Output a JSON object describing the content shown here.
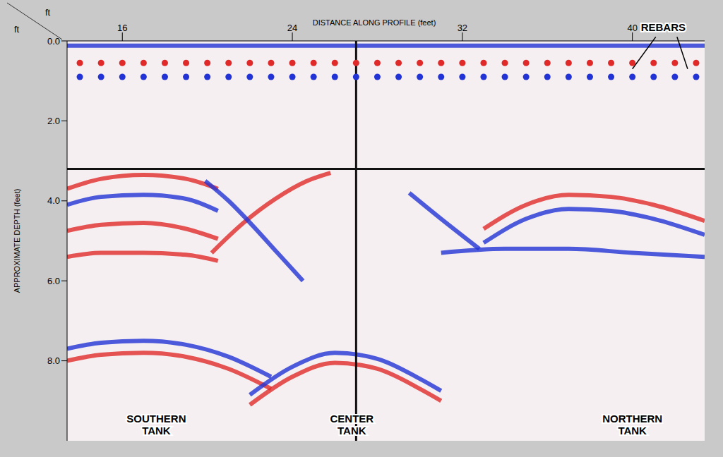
{
  "chart_data": {
    "type": "line",
    "x_label": "DISTANCE ALONG PROFILE (feet)",
    "y_label": "APPROXIMATE DEPTH (feet)",
    "x_unit": "ft",
    "y_unit": "ft",
    "xlim": [
      13.4,
      43.4
    ],
    "xticks": [
      16,
      24,
      32,
      40
    ],
    "ylim": [
      0,
      10
    ],
    "yticks": [
      {
        "value": 0,
        "label": "0.0"
      },
      {
        "value": 2,
        "label": "2.0"
      },
      {
        "value": 4,
        "label": "4.0"
      },
      {
        "value": 6,
        "label": "6.0"
      },
      {
        "value": 8,
        "label": "8.0"
      }
    ],
    "grid": false,
    "reference_lines": {
      "x": 27.0,
      "y": 3.2
    },
    "series": [
      {
        "type": "line",
        "color": "#2233d6",
        "x": [
          13.4,
          43.4
        ],
        "values": [
          0.12,
          0.12
        ]
      },
      {
        "type": "scatter",
        "marker": "circle",
        "color": "#e02a2a",
        "x": [
          14,
          15,
          16,
          17,
          18,
          19,
          20,
          21,
          22,
          23,
          24,
          25,
          26,
          27,
          28,
          29,
          30,
          31,
          32,
          33,
          34,
          35,
          36,
          37,
          38,
          39,
          40,
          41,
          42,
          43
        ],
        "values": [
          0.55,
          0.55,
          0.55,
          0.55,
          0.55,
          0.55,
          0.55,
          0.55,
          0.55,
          0.55,
          0.55,
          0.55,
          0.55,
          0.55,
          0.55,
          0.55,
          0.55,
          0.55,
          0.55,
          0.55,
          0.55,
          0.55,
          0.55,
          0.55,
          0.55,
          0.55,
          0.55,
          0.55,
          0.55,
          0.55
        ]
      },
      {
        "type": "scatter",
        "marker": "circle",
        "color": "#2233d6",
        "x": [
          14,
          15,
          16,
          17,
          18,
          19,
          20,
          21,
          22,
          23,
          24,
          25,
          26,
          27,
          28,
          29,
          30,
          31,
          32,
          33,
          34,
          35,
          36,
          37,
          38,
          39,
          40,
          41,
          42,
          43
        ],
        "values": [
          0.9,
          0.9,
          0.9,
          0.9,
          0.9,
          0.9,
          0.9,
          0.9,
          0.9,
          0.9,
          0.9,
          0.9,
          0.9,
          0.9,
          0.9,
          0.9,
          0.9,
          0.9,
          0.9,
          0.9,
          0.9,
          0.9,
          0.9,
          0.9,
          0.9,
          0.9,
          0.9,
          0.9,
          0.9,
          0.9
        ]
      },
      {
        "type": "line",
        "color": "#e02a2a",
        "x": [
          13.4,
          15,
          17,
          19,
          20.5
        ],
        "values": [
          3.7,
          3.45,
          3.35,
          3.45,
          3.7
        ]
      },
      {
        "type": "line",
        "color": "#2233d6",
        "x": [
          13.4,
          15,
          17,
          19,
          20.5
        ],
        "values": [
          4.1,
          3.9,
          3.85,
          3.95,
          4.25
        ]
      },
      {
        "type": "line",
        "color": "#e02a2a",
        "x": [
          13.4,
          15,
          17,
          19,
          20.5
        ],
        "values": [
          4.75,
          4.6,
          4.55,
          4.7,
          4.95
        ]
      },
      {
        "type": "line",
        "color": "#e02a2a",
        "x": [
          13.4,
          15,
          17,
          19,
          20.5
        ],
        "values": [
          5.4,
          5.3,
          5.3,
          5.35,
          5.5
        ]
      },
      {
        "type": "line",
        "color": "#e02a2a",
        "x": [
          20.2,
          21.7,
          23.2,
          24.7,
          25.8
        ],
        "values": [
          5.3,
          4.55,
          3.95,
          3.5,
          3.3
        ]
      },
      {
        "type": "line",
        "color": "#2233d6",
        "x": [
          19.9,
          21.0,
          22.1,
          23.3,
          24.5
        ],
        "values": [
          3.5,
          4.0,
          4.6,
          5.3,
          6.0
        ]
      },
      {
        "type": "line",
        "color": "#2233d6",
        "x": [
          13.4,
          15,
          17,
          19,
          21,
          23
        ],
        "values": [
          7.7,
          7.55,
          7.5,
          7.6,
          7.9,
          8.4
        ]
      },
      {
        "type": "line",
        "color": "#e02a2a",
        "x": [
          13.4,
          15,
          17,
          19,
          21,
          23
        ],
        "values": [
          8.0,
          7.85,
          7.8,
          7.9,
          8.2,
          8.7
        ]
      },
      {
        "type": "line",
        "color": "#2233d6",
        "x": [
          22,
          24,
          26,
          28,
          30,
          31
        ],
        "values": [
          8.85,
          8.15,
          7.8,
          7.95,
          8.45,
          8.75
        ]
      },
      {
        "type": "line",
        "color": "#e02a2a",
        "x": [
          22,
          24,
          26,
          28,
          30,
          31
        ],
        "values": [
          9.1,
          8.4,
          8.05,
          8.2,
          8.7,
          9.0
        ]
      },
      {
        "type": "line",
        "color": "#e02a2a",
        "x": [
          33,
          35,
          37,
          39,
          41,
          43.4
        ],
        "values": [
          4.7,
          4.1,
          3.85,
          3.9,
          4.1,
          4.5
        ]
      },
      {
        "type": "line",
        "color": "#2233d6",
        "x": [
          33,
          35,
          37,
          39,
          41,
          43.4
        ],
        "values": [
          5.05,
          4.45,
          4.2,
          4.25,
          4.45,
          4.85
        ]
      },
      {
        "type": "line",
        "color": "#2233d6",
        "x": [
          31,
          34,
          37,
          40,
          43.4
        ],
        "values": [
          5.3,
          5.2,
          5.2,
          5.3,
          5.4
        ]
      },
      {
        "type": "line",
        "color": "#2233d6",
        "x": [
          29.5,
          31,
          32.8
        ],
        "values": [
          3.8,
          4.45,
          5.2
        ]
      }
    ],
    "annotations": [
      {
        "text": "SOUTHERN TANK",
        "x": 17.6,
        "y": 9.55
      },
      {
        "text": "CENTER TANK",
        "x": 26.8,
        "y": 9.55
      },
      {
        "text": "NORTHERN TANK",
        "x": 40.0,
        "y": 9.55
      },
      {
        "text": "REBARS",
        "x": 41.45,
        "y": -0.25,
        "arrows": [
          [
            [
              41.1,
              -0.1
            ],
            [
              40.0,
              0.7
            ]
          ],
          [
            [
              42.1,
              -0.1
            ],
            [
              42.6,
              0.7
            ]
          ]
        ]
      }
    ]
  }
}
